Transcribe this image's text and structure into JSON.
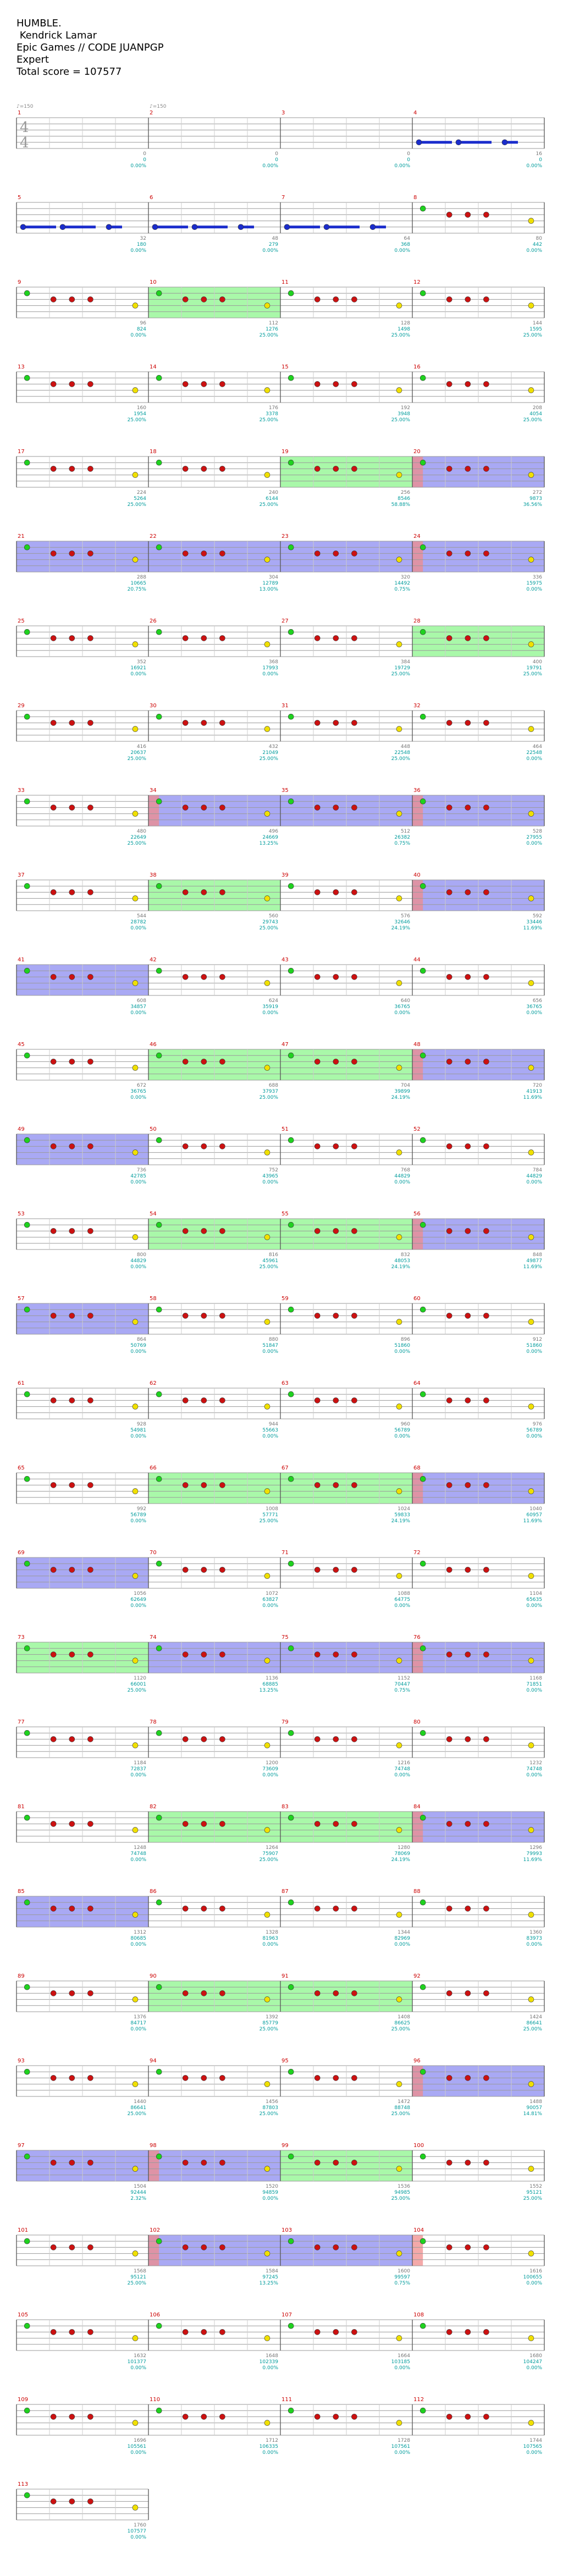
{
  "header": {
    "song": "HUMBLE.",
    "artist": " Kendrick Lamar",
    "charter": "Epic Games // CODE JUANPGP",
    "difficulty": "Expert",
    "total_score_text": "Total score = 107577"
  },
  "time_signature": {
    "top": "4",
    "bottom": "4"
  },
  "tempo_marks": [
    "♪=150",
    "♪=150"
  ],
  "colors": {
    "staff": "#9a9a9a",
    "measure_line": "#555555",
    "gem_green": "#1fd21f",
    "gem_red": "#cc1111",
    "gem_yellow": "#f0e000",
    "gem_blue": "#1a2ccc",
    "sustain_green": "#33ee33",
    "sustain_yellow": "#ffff00",
    "sustain_blue": "#1a2ccc",
    "star_power": "#8cf58c",
    "overdrive": "#8c8cf0",
    "activation": "#f08c8c",
    "measure_number": "#cc0000",
    "score_cyan": "#009c9c",
    "score_grey": "#777777"
  },
  "chart_data": {
    "type": "table",
    "description_columns": [
      "measure",
      "score",
      "percent",
      "note_count"
    ],
    "measures": [
      {
        "m": 1,
        "score": "0",
        "pct": "0.00%",
        "n": "0"
      },
      {
        "m": 2,
        "score": "0",
        "pct": "0.00%",
        "n": "0"
      },
      {
        "m": 3,
        "score": "0",
        "pct": "0.00%",
        "n": "0"
      },
      {
        "m": 4,
        "score": "0",
        "pct": "0.00%",
        "n": "16"
      },
      {
        "m": 5,
        "score": "180",
        "pct": "0.00%",
        "n": "32"
      },
      {
        "m": 6,
        "score": "279",
        "pct": "0.00%",
        "n": "48"
      },
      {
        "m": 7,
        "score": "368",
        "pct": "0.00%",
        "n": "64"
      },
      {
        "m": 8,
        "score": "442",
        "pct": "0.00%",
        "n": "80"
      },
      {
        "m": 9,
        "score": "824",
        "pct": "0.00%",
        "n": "96"
      },
      {
        "m": 10,
        "score": "1276",
        "pct": "25.00%",
        "n": "112"
      },
      {
        "m": 11,
        "score": "1498",
        "pct": "25.00%",
        "n": "128"
      },
      {
        "m": 12,
        "score": "1595",
        "pct": "25.00%",
        "n": "144"
      },
      {
        "m": 13,
        "score": "1954",
        "pct": "25.00%",
        "n": "160"
      },
      {
        "m": 14,
        "score": "3378",
        "pct": "25.00%",
        "n": "176"
      },
      {
        "m": 15,
        "score": "3948",
        "pct": "25.00%",
        "n": "192"
      },
      {
        "m": 16,
        "score": "4054",
        "pct": "25.00%",
        "n": "208"
      },
      {
        "m": 17,
        "score": "5264",
        "pct": "25.00%",
        "n": "224"
      },
      {
        "m": 18,
        "score": "6144",
        "pct": "25.00%",
        "n": "240"
      },
      {
        "m": 19,
        "score": "8546",
        "pct": "58.88%",
        "n": "256"
      },
      {
        "m": 20,
        "score": "9873",
        "pct": "36.56%",
        "n": "272"
      },
      {
        "m": 21,
        "score": "10665",
        "pct": "20.75%",
        "n": "288"
      },
      {
        "m": 22,
        "score": "12789",
        "pct": "13.00%",
        "n": "304"
      },
      {
        "m": 23,
        "score": "14492",
        "pct": "0.75%",
        "n": "320"
      },
      {
        "m": 24,
        "score": "15975",
        "pct": "0.00%",
        "n": "336"
      },
      {
        "m": 25,
        "score": "16921",
        "pct": "0.00%",
        "n": "352"
      },
      {
        "m": 26,
        "score": "17993",
        "pct": "0.00%",
        "n": "368"
      },
      {
        "m": 27,
        "score": "19729",
        "pct": "25.00%",
        "n": "384"
      },
      {
        "m": 28,
        "score": "19791",
        "pct": "25.00%",
        "n": "400"
      },
      {
        "m": 29,
        "score": "20637",
        "pct": "25.00%",
        "n": "416"
      },
      {
        "m": 30,
        "score": "21049",
        "pct": "25.00%",
        "n": "432"
      },
      {
        "m": 31,
        "score": "22548",
        "pct": "25.00%",
        "n": "448"
      },
      {
        "m": 32,
        "score": "22548",
        "pct": "0.00%",
        "n": "464"
      },
      {
        "m": 33,
        "score": "22649",
        "pct": "25.00%",
        "n": "480"
      },
      {
        "m": 34,
        "score": "24669",
        "pct": "13.25%",
        "n": "496"
      },
      {
        "m": 35,
        "score": "26382",
        "pct": "0.75%",
        "n": "512"
      },
      {
        "m": 36,
        "score": "27955",
        "pct": "0.00%",
        "n": "528"
      },
      {
        "m": 37,
        "score": "28782",
        "pct": "0.00%",
        "n": "544"
      },
      {
        "m": 38,
        "score": "29743",
        "pct": "25.00%",
        "n": "560"
      },
      {
        "m": 39,
        "score": "32646",
        "pct": "24.19%",
        "n": "576"
      },
      {
        "m": 40,
        "score": "33446",
        "pct": "11.69%",
        "n": "592"
      },
      {
        "m": 41,
        "score": "34857",
        "pct": "0.00%",
        "n": "608"
      },
      {
        "m": 42,
        "score": "35919",
        "pct": "0.00%",
        "n": "624"
      },
      {
        "m": 43,
        "score": "36765",
        "pct": "0.00%",
        "n": "640"
      },
      {
        "m": 44,
        "score": "36765",
        "pct": "0.00%",
        "n": "656"
      },
      {
        "m": 45,
        "score": "36765",
        "pct": "0.00%",
        "n": "672"
      },
      {
        "m": 46,
        "score": "37937",
        "pct": "25.00%",
        "n": "688"
      },
      {
        "m": 47,
        "score": "39899",
        "pct": "24.19%",
        "n": "704"
      },
      {
        "m": 48,
        "score": "41913",
        "pct": "11.69%",
        "n": "720"
      },
      {
        "m": 49,
        "score": "42785",
        "pct": "0.00%",
        "n": "736"
      },
      {
        "m": 50,
        "score": "43965",
        "pct": "0.00%",
        "n": "752"
      },
      {
        "m": 51,
        "score": "44829",
        "pct": "0.00%",
        "n": "768"
      },
      {
        "m": 52,
        "score": "44829",
        "pct": "0.00%",
        "n": "784"
      },
      {
        "m": 53,
        "score": "44829",
        "pct": "0.00%",
        "n": "800"
      },
      {
        "m": 54,
        "score": "45961",
        "pct": "25.00%",
        "n": "816"
      },
      {
        "m": 55,
        "score": "48053",
        "pct": "24.19%",
        "n": "832"
      },
      {
        "m": 56,
        "score": "49877",
        "pct": "11.69%",
        "n": "848"
      },
      {
        "m": 57,
        "score": "50769",
        "pct": "0.00%",
        "n": "864"
      },
      {
        "m": 58,
        "score": "51847",
        "pct": "0.00%",
        "n": "880"
      },
      {
        "m": 59,
        "score": "51860",
        "pct": "0.00%",
        "n": "896"
      },
      {
        "m": 60,
        "score": "51860",
        "pct": "0.00%",
        "n": "912"
      },
      {
        "m": 61,
        "score": "54981",
        "pct": "0.00%",
        "n": "928"
      },
      {
        "m": 62,
        "score": "55663",
        "pct": "0.00%",
        "n": "944"
      },
      {
        "m": 63,
        "score": "56789",
        "pct": "0.00%",
        "n": "960"
      },
      {
        "m": 64,
        "score": "56789",
        "pct": "0.00%",
        "n": "976"
      },
      {
        "m": 65,
        "score": "56789",
        "pct": "0.00%",
        "n": "992"
      },
      {
        "m": 66,
        "score": "57771",
        "pct": "25.00%",
        "n": "1008"
      },
      {
        "m": 67,
        "score": "59833",
        "pct": "24.19%",
        "n": "1024"
      },
      {
        "m": 68,
        "score": "60957",
        "pct": "11.69%",
        "n": "1040"
      },
      {
        "m": 69,
        "score": "62649",
        "pct": "0.00%",
        "n": "1056"
      },
      {
        "m": 70,
        "score": "63827",
        "pct": "0.00%",
        "n": "1072"
      },
      {
        "m": 71,
        "score": "64775",
        "pct": "0.00%",
        "n": "1088"
      },
      {
        "m": 72,
        "score": "65635",
        "pct": "0.00%",
        "n": "1104"
      },
      {
        "m": 73,
        "score": "66001",
        "pct": "25.00%",
        "n": "1120"
      },
      {
        "m": 74,
        "score": "68885",
        "pct": "13.25%",
        "n": "1136"
      },
      {
        "m": 75,
        "score": "70447",
        "pct": "0.75%",
        "n": "1152"
      },
      {
        "m": 76,
        "score": "71851",
        "pct": "0.00%",
        "n": "1168"
      },
      {
        "m": 77,
        "score": "72837",
        "pct": "0.00%",
        "n": "1184"
      },
      {
        "m": 78,
        "score": "73609",
        "pct": "0.00%",
        "n": "1200"
      },
      {
        "m": 79,
        "score": "74748",
        "pct": "0.00%",
        "n": "1216"
      },
      {
        "m": 80,
        "score": "74748",
        "pct": "0.00%",
        "n": "1232"
      },
      {
        "m": 81,
        "score": "74748",
        "pct": "0.00%",
        "n": "1248"
      },
      {
        "m": 82,
        "score": "75907",
        "pct": "25.00%",
        "n": "1264"
      },
      {
        "m": 83,
        "score": "78069",
        "pct": "24.19%",
        "n": "1280"
      },
      {
        "m": 84,
        "score": "79993",
        "pct": "11.69%",
        "n": "1296"
      },
      {
        "m": 85,
        "score": "80685",
        "pct": "0.00%",
        "n": "1312"
      },
      {
        "m": 86,
        "score": "81963",
        "pct": "0.00%",
        "n": "1328"
      },
      {
        "m": 87,
        "score": "82969",
        "pct": "0.00%",
        "n": "1344"
      },
      {
        "m": 88,
        "score": "83973",
        "pct": "0.00%",
        "n": "1360"
      },
      {
        "m": 89,
        "score": "84717",
        "pct": "0.00%",
        "n": "1376"
      },
      {
        "m": 90,
        "score": "85779",
        "pct": "25.00%",
        "n": "1392"
      },
      {
        "m": 91,
        "score": "86625",
        "pct": "25.00%",
        "n": "1408"
      },
      {
        "m": 92,
        "score": "86641",
        "pct": "25.00%",
        "n": "1424"
      },
      {
        "m": 93,
        "score": "86641",
        "pct": "25.00%",
        "n": "1440"
      },
      {
        "m": 94,
        "score": "87803",
        "pct": "25.00%",
        "n": "1456"
      },
      {
        "m": 95,
        "score": "88748",
        "pct": "25.00%",
        "n": "1472"
      },
      {
        "m": 96,
        "score": "90057",
        "pct": "14.81%",
        "n": "1488"
      },
      {
        "m": 97,
        "score": "92444",
        "pct": "2.32%",
        "n": "1504"
      },
      {
        "m": 98,
        "score": "94859",
        "pct": "0.00%",
        "n": "1520"
      },
      {
        "m": 99,
        "score": "94985",
        "pct": "25.00%",
        "n": "1536"
      },
      {
        "m": 100,
        "score": "95121",
        "pct": "25.00%",
        "n": "1552"
      },
      {
        "m": 101,
        "score": "95121",
        "pct": "25.00%",
        "n": "1568"
      },
      {
        "m": 102,
        "score": "97245",
        "pct": "13.25%",
        "n": "1584"
      },
      {
        "m": 103,
        "score": "99597",
        "pct": "0.75%",
        "n": "1600"
      },
      {
        "m": 104,
        "score": "100655",
        "pct": "0.00%",
        "n": "1616"
      },
      {
        "m": 105,
        "score": "101377",
        "pct": "0.00%",
        "n": "1632"
      },
      {
        "m": 106,
        "score": "102339",
        "pct": "0.00%",
        "n": "1648"
      },
      {
        "m": 107,
        "score": "103185",
        "pct": "0.00%",
        "n": "1664"
      },
      {
        "m": 108,
        "score": "104247",
        "pct": "0.00%",
        "n": "1680"
      },
      {
        "m": 109,
        "score": "105561",
        "pct": "0.00%",
        "n": "1696"
      },
      {
        "m": 110,
        "score": "106335",
        "pct": "0.00%",
        "n": "1712"
      },
      {
        "m": 111,
        "score": "107561",
        "pct": "0.00%",
        "n": "1728"
      },
      {
        "m": 112,
        "score": "107565",
        "pct": "0.00%",
        "n": "1744"
      },
      {
        "m": 113,
        "score": "107577",
        "pct": "0.00%",
        "n": "1760"
      }
    ]
  }
}
